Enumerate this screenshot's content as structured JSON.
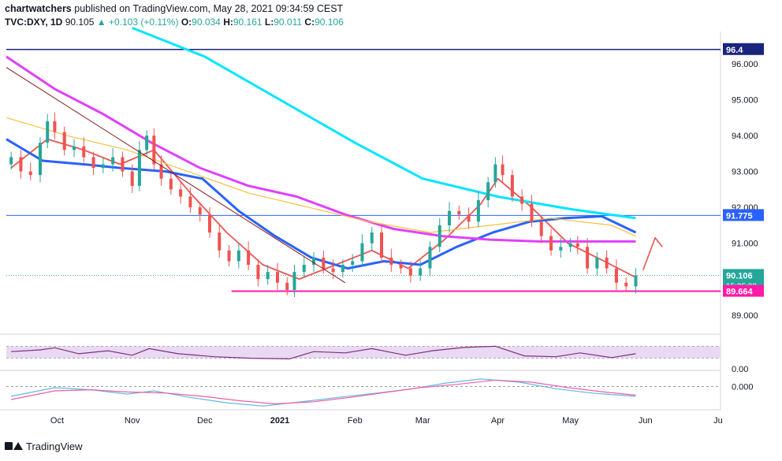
{
  "header": {
    "publisher": "chartwatchers",
    "published_text": " published on TradingView.com, May 28, 2021 09:34:59 CEST",
    "symbol": "TVC:DXY, 1D",
    "last": "90.105",
    "change": "▲ +0.103 (+0.11%)",
    "o_label": "O:",
    "o": "90.034",
    "h_label": "H:",
    "h": "90.161",
    "l_label": "L:",
    "l": "90.011",
    "c_label": "C:",
    "c": "90.106"
  },
  "footer": {
    "brand": "TradingView"
  },
  "colors": {
    "up": "#26a69a",
    "down": "#ef5350",
    "ema_short": "#ef5350",
    "ma_mid": "#2962ff",
    "ma_long": "#e040fb",
    "ma_slow": "#f5c242",
    "ma_200": "#00e5ff",
    "levels": "#ff1aa7",
    "trendline": "#8b1a1a",
    "rsi": "#7e3080",
    "macd": "#5fb8e8",
    "signal": "#ef5fa0"
  },
  "chart_data": {
    "type": "candlestick",
    "ylim": [
      88.6,
      96.9
    ],
    "yticks": [
      "96.000",
      "95.000",
      "94.000",
      "93.000",
      "92.000",
      "91.000",
      "89.000"
    ],
    "currency": "USD",
    "xticks": [
      {
        "label": "Oct",
        "date": "2020-10-01"
      },
      {
        "label": "Nov",
        "date": "2020-11-01"
      },
      {
        "label": "Dec",
        "date": "2020-12-01"
      },
      {
        "label": "2021",
        "date": "2021-01-01"
      },
      {
        "label": "Feb",
        "date": "2021-02-01"
      },
      {
        "label": "Mar",
        "date": "2021-03-01"
      },
      {
        "label": "Apr",
        "date": "2021-04-01"
      },
      {
        "label": "May",
        "date": "2021-05-01"
      },
      {
        "label": "Jun",
        "date": "2021-06-01"
      },
      {
        "label": "Ju",
        "date": "2021-07-01"
      }
    ],
    "xlim": [
      "2020-09-10",
      "2021-07-02"
    ],
    "price_labels": [
      {
        "value": 96.4,
        "text": "96.4"
      },
      {
        "value": 91.775,
        "text": "91.775"
      },
      {
        "value": 90.106,
        "text": "90.106",
        "sub": "15:25:02"
      },
      {
        "value": 89.664,
        "text": "89.664"
      }
    ],
    "horizontal_levels": [
      {
        "value": 96.4,
        "from": "2020-09-10",
        "to": "2021-06-28"
      },
      {
        "value": 91.775,
        "from": "2020-09-10",
        "to": "2021-06-28"
      },
      {
        "value": 89.664,
        "from": "2020-12-12",
        "to": "2021-06-28"
      }
    ],
    "trendline": {
      "from": [
        "2020-09-10",
        95.9
      ],
      "to": [
        "2021-01-28",
        89.9
      ]
    },
    "arrow": {
      "points": [
        [
          "2021-05-31",
          90.25
        ],
        [
          "2021-06-05",
          91.15
        ],
        [
          "2021-06-08",
          90.9
        ]
      ]
    },
    "closes": [
      [
        "2020-09-12",
        93.4
      ],
      [
        "2020-09-16",
        93.0
      ],
      [
        "2020-09-20",
        92.9
      ],
      [
        "2020-09-24",
        93.8
      ],
      [
        "2020-09-27",
        94.4
      ],
      [
        "2020-09-30",
        94.1
      ],
      [
        "2020-10-04",
        93.6
      ],
      [
        "2020-10-08",
        93.7
      ],
      [
        "2020-10-12",
        93.4
      ],
      [
        "2020-10-16",
        93.1
      ],
      [
        "2020-10-20",
        93.2
      ],
      [
        "2020-10-24",
        93.4
      ],
      [
        "2020-10-28",
        93.0
      ],
      [
        "2020-11-01",
        92.6
      ],
      [
        "2020-11-04",
        93.6
      ],
      [
        "2020-11-07",
        94.0
      ],
      [
        "2020-11-10",
        93.2
      ],
      [
        "2020-11-13",
        92.8
      ],
      [
        "2020-11-17",
        92.5
      ],
      [
        "2020-11-21",
        92.3
      ],
      [
        "2020-11-25",
        92.0
      ],
      [
        "2020-11-29",
        91.8
      ],
      [
        "2020-12-03",
        91.3
      ],
      [
        "2020-12-07",
        90.8
      ],
      [
        "2020-12-11",
        90.5
      ],
      [
        "2020-12-15",
        90.8
      ],
      [
        "2020-12-19",
        90.4
      ],
      [
        "2020-12-23",
        90.0
      ],
      [
        "2020-12-27",
        90.2
      ],
      [
        "2020-12-31",
        89.9
      ],
      [
        "2021-01-04",
        89.7
      ],
      [
        "2021-01-07",
        90.2
      ],
      [
        "2021-01-11",
        90.4
      ],
      [
        "2021-01-15",
        90.6
      ],
      [
        "2021-01-19",
        90.3
      ],
      [
        "2021-01-23",
        90.2
      ],
      [
        "2021-01-27",
        90.4
      ],
      [
        "2021-01-31",
        90.5
      ],
      [
        "2021-02-04",
        91.0
      ],
      [
        "2021-02-08",
        91.3
      ],
      [
        "2021-02-12",
        90.6
      ],
      [
        "2021-02-16",
        90.4
      ],
      [
        "2021-02-20",
        90.3
      ],
      [
        "2021-02-24",
        90.1
      ],
      [
        "2021-02-28",
        90.3
      ],
      [
        "2021-03-04",
        90.9
      ],
      [
        "2021-03-08",
        91.5
      ],
      [
        "2021-03-12",
        91.9
      ],
      [
        "2021-03-16",
        91.8
      ],
      [
        "2021-03-20",
        91.6
      ],
      [
        "2021-03-24",
        92.2
      ],
      [
        "2021-03-28",
        92.7
      ],
      [
        "2021-03-31",
        93.2
      ],
      [
        "2021-04-03",
        92.9
      ],
      [
        "2021-04-07",
        92.3
      ],
      [
        "2021-04-11",
        92.1
      ],
      [
        "2021-04-15",
        91.6
      ],
      [
        "2021-04-19",
        91.2
      ],
      [
        "2021-04-23",
        90.8
      ],
      [
        "2021-04-27",
        90.9
      ],
      [
        "2021-05-01",
        91.0
      ],
      [
        "2021-05-04",
        90.9
      ],
      [
        "2021-05-08",
        90.3
      ],
      [
        "2021-05-12",
        90.6
      ],
      [
        "2021-05-16",
        90.3
      ],
      [
        "2021-05-20",
        89.9
      ],
      [
        "2021-05-24",
        89.8
      ],
      [
        "2021-05-28",
        90.106
      ]
    ],
    "series": [
      {
        "key": "ema_short",
        "points": [
          [
            "2020-09-12",
            93.1
          ],
          [
            "2020-09-27",
            93.9
          ],
          [
            "2020-10-12",
            93.6
          ],
          [
            "2020-10-27",
            93.2
          ],
          [
            "2020-11-10",
            93.6
          ],
          [
            "2020-11-25",
            92.4
          ],
          [
            "2020-12-10",
            91.3
          ],
          [
            "2020-12-25",
            90.4
          ],
          [
            "2021-01-09",
            90.0
          ],
          [
            "2021-01-24",
            90.4
          ],
          [
            "2021-02-08",
            90.8
          ],
          [
            "2021-02-23",
            90.3
          ],
          [
            "2021-03-10",
            91.1
          ],
          [
            "2021-03-25",
            92.1
          ],
          [
            "2021-04-01",
            92.8
          ],
          [
            "2021-04-15",
            92.0
          ],
          [
            "2021-04-30",
            91.0
          ],
          [
            "2021-05-15",
            90.5
          ],
          [
            "2021-05-28",
            90.05
          ]
        ]
      },
      {
        "key": "ma_mid",
        "points": [
          [
            "2020-09-10",
            93.9
          ],
          [
            "2020-09-25",
            93.3
          ],
          [
            "2020-10-12",
            93.2
          ],
          [
            "2020-10-27",
            93.1
          ],
          [
            "2020-11-15",
            93.0
          ],
          [
            "2020-11-30",
            92.8
          ],
          [
            "2020-12-15",
            91.9
          ],
          [
            "2020-12-30",
            91.2
          ],
          [
            "2021-01-14",
            90.6
          ],
          [
            "2021-01-29",
            90.3
          ],
          [
            "2021-02-13",
            90.5
          ],
          [
            "2021-02-28",
            90.4
          ],
          [
            "2021-03-15",
            90.9
          ],
          [
            "2021-03-30",
            91.3
          ],
          [
            "2021-04-14",
            91.6
          ],
          [
            "2021-04-29",
            91.7
          ],
          [
            "2021-05-14",
            91.75
          ],
          [
            "2021-05-28",
            91.3
          ]
        ]
      },
      {
        "key": "ma_long",
        "points": [
          [
            "2020-09-10",
            96.2
          ],
          [
            "2020-09-30",
            95.3
          ],
          [
            "2020-10-20",
            94.6
          ],
          [
            "2020-11-09",
            93.8
          ],
          [
            "2020-11-29",
            93.1
          ],
          [
            "2020-12-19",
            92.6
          ],
          [
            "2021-01-08",
            92.3
          ],
          [
            "2021-01-28",
            91.8
          ],
          [
            "2021-02-17",
            91.4
          ],
          [
            "2021-03-09",
            91.2
          ],
          [
            "2021-03-29",
            91.1
          ],
          [
            "2021-04-18",
            91.05
          ],
          [
            "2021-05-08",
            91.05
          ],
          [
            "2021-05-28",
            91.05
          ]
        ]
      },
      {
        "key": "ma_slow",
        "points": [
          [
            "2020-09-10",
            94.5
          ],
          [
            "2020-10-05",
            94.0
          ],
          [
            "2020-10-30",
            93.6
          ],
          [
            "2020-11-24",
            93.0
          ],
          [
            "2020-12-19",
            92.4
          ],
          [
            "2021-01-13",
            92.0
          ],
          [
            "2021-02-07",
            91.6
          ],
          [
            "2021-03-04",
            91.3
          ],
          [
            "2021-03-29",
            91.5
          ],
          [
            "2021-04-23",
            91.7
          ],
          [
            "2021-05-18",
            91.5
          ],
          [
            "2021-05-28",
            91.2
          ]
        ]
      },
      {
        "key": "ma_200",
        "points": [
          [
            "2020-11-01",
            97.0
          ],
          [
            "2020-12-01",
            96.2
          ],
          [
            "2021-01-01",
            95.0
          ],
          [
            "2021-02-01",
            93.8
          ],
          [
            "2021-03-01",
            92.8
          ],
          [
            "2021-04-01",
            92.3
          ],
          [
            "2021-05-01",
            91.95
          ],
          [
            "2021-05-28",
            91.7
          ]
        ]
      }
    ],
    "rsi": [
      [
        "2020-09-12",
        52
      ],
      [
        "2020-09-24",
        58
      ],
      [
        "2020-09-30",
        65
      ],
      [
        "2020-10-10",
        45
      ],
      [
        "2020-10-22",
        55
      ],
      [
        "2020-11-01",
        40
      ],
      [
        "2020-11-08",
        62
      ],
      [
        "2020-11-20",
        45
      ],
      [
        "2020-12-05",
        35
      ],
      [
        "2020-12-20",
        30
      ],
      [
        "2021-01-05",
        28
      ],
      [
        "2021-01-15",
        52
      ],
      [
        "2021-01-28",
        48
      ],
      [
        "2021-02-08",
        62
      ],
      [
        "2021-02-22",
        40
      ],
      [
        "2021-03-05",
        55
      ],
      [
        "2021-03-18",
        66
      ],
      [
        "2021-03-31",
        70
      ],
      [
        "2021-04-12",
        38
      ],
      [
        "2021-04-25",
        35
      ],
      [
        "2021-05-05",
        48
      ],
      [
        "2021-05-18",
        32
      ],
      [
        "2021-05-28",
        45
      ]
    ],
    "rsi_band": [
      30,
      70
    ],
    "macd_zero_label": "0.000",
    "rsi_label": "0.00",
    "macd": [
      [
        "2020-09-12",
        -0.45
      ],
      [
        "2020-09-30",
        -0.05
      ],
      [
        "2020-10-15",
        -0.15
      ],
      [
        "2020-10-30",
        -0.35
      ],
      [
        "2020-11-10",
        -0.2
      ],
      [
        "2020-11-25",
        -0.5
      ],
      [
        "2020-12-10",
        -0.75
      ],
      [
        "2020-12-25",
        -0.9
      ],
      [
        "2021-01-10",
        -0.7
      ],
      [
        "2021-01-25",
        -0.5
      ],
      [
        "2021-02-10",
        -0.3
      ],
      [
        "2021-02-25",
        -0.1
      ],
      [
        "2021-03-10",
        0.15
      ],
      [
        "2021-03-25",
        0.35
      ],
      [
        "2021-04-10",
        0.2
      ],
      [
        "2021-04-25",
        -0.1
      ],
      [
        "2021-05-10",
        -0.3
      ],
      [
        "2021-05-28",
        -0.45
      ]
    ],
    "signal": [
      [
        "2020-09-12",
        -0.6
      ],
      [
        "2020-09-30",
        -0.2
      ],
      [
        "2020-10-15",
        -0.15
      ],
      [
        "2020-10-30",
        -0.25
      ],
      [
        "2020-11-15",
        -0.3
      ],
      [
        "2020-11-30",
        -0.45
      ],
      [
        "2020-12-15",
        -0.65
      ],
      [
        "2020-12-30",
        -0.8
      ],
      [
        "2021-01-15",
        -0.7
      ],
      [
        "2021-01-30",
        -0.5
      ],
      [
        "2021-02-15",
        -0.25
      ],
      [
        "2021-02-28",
        -0.05
      ],
      [
        "2021-03-15",
        0.1
      ],
      [
        "2021-03-31",
        0.3
      ],
      [
        "2021-04-15",
        0.2
      ],
      [
        "2021-04-30",
        -0.05
      ],
      [
        "2021-05-15",
        -0.25
      ],
      [
        "2021-05-28",
        -0.4
      ]
    ]
  }
}
